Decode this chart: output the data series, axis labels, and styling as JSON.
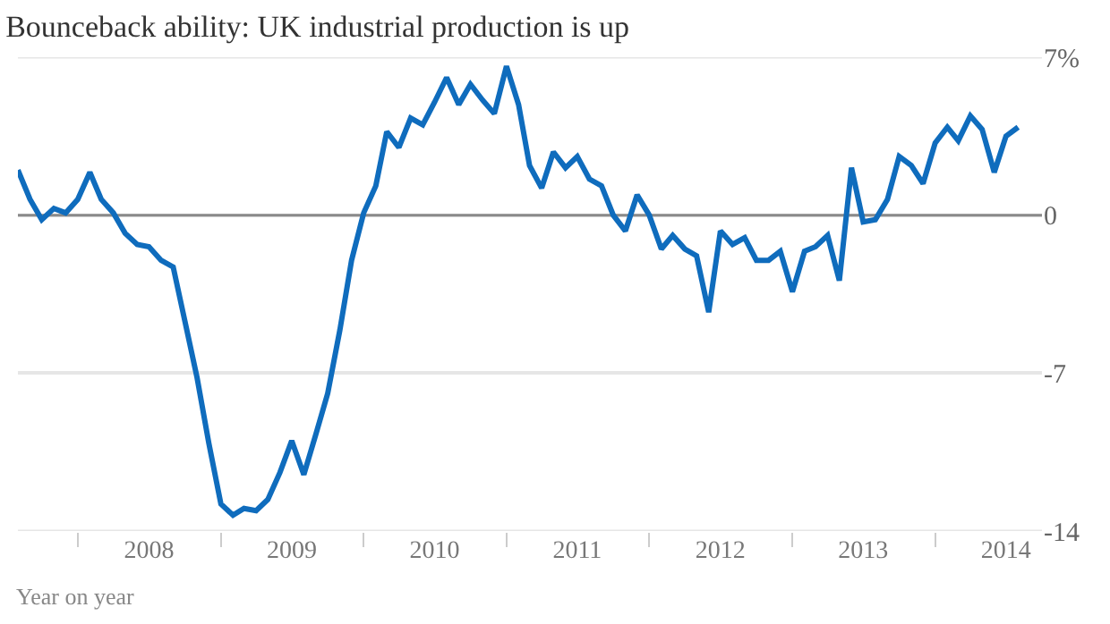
{
  "chart_data": {
    "type": "line",
    "title": "Bounceback ability: UK industrial production is up",
    "annotations": [
      "Year on year"
    ],
    "x": [
      "2007-08",
      "2007-09",
      "2007-10",
      "2007-11",
      "2007-12",
      "2008-01",
      "2008-02",
      "2008-03",
      "2008-04",
      "2008-05",
      "2008-06",
      "2008-07",
      "2008-08",
      "2008-09",
      "2008-10",
      "2008-11",
      "2008-12",
      "2009-01",
      "2009-02",
      "2009-03",
      "2009-04",
      "2009-05",
      "2009-06",
      "2009-07",
      "2009-08",
      "2009-09",
      "2009-10",
      "2009-11",
      "2009-12",
      "2010-01",
      "2010-02",
      "2010-03",
      "2010-04",
      "2010-05",
      "2010-06",
      "2010-07",
      "2010-08",
      "2010-09",
      "2010-10",
      "2010-11",
      "2010-12",
      "2011-01",
      "2011-02",
      "2011-03",
      "2011-04",
      "2011-05",
      "2011-06",
      "2011-07",
      "2011-08",
      "2011-09",
      "2011-10",
      "2011-11",
      "2011-12",
      "2012-01",
      "2012-02",
      "2012-03",
      "2012-04",
      "2012-05",
      "2012-06",
      "2012-07",
      "2012-08",
      "2012-09",
      "2012-10",
      "2012-11",
      "2012-12",
      "2013-01",
      "2013-02",
      "2013-03",
      "2013-04",
      "2013-05",
      "2013-06",
      "2013-07",
      "2013-08",
      "2013-09",
      "2013-10",
      "2013-11",
      "2013-12",
      "2014-01",
      "2014-02",
      "2014-03",
      "2014-04",
      "2014-05",
      "2014-06",
      "2014-07",
      "2014-08"
    ],
    "series": [
      {
        "color": "#0f6cbd",
        "values": [
          2.0,
          0.7,
          -0.2,
          0.3,
          0.1,
          0.7,
          1.9,
          0.7,
          0.1,
          -0.8,
          -1.3,
          -1.4,
          -2.0,
          -2.3,
          -4.7,
          -7.2,
          -10.1,
          -12.8,
          -13.3,
          -13.0,
          -13.1,
          -12.6,
          -11.4,
          -10.0,
          -11.5,
          -9.7,
          -7.9,
          -5.1,
          -2.0,
          0.1,
          1.3,
          3.7,
          3.0,
          4.3,
          4.0,
          5.0,
          6.1,
          4.9,
          5.8,
          5.1,
          4.5,
          6.6,
          4.9,
          2.2,
          1.2,
          2.8,
          2.1,
          2.6,
          1.6,
          1.3,
          0.0,
          -0.7,
          0.9,
          0.0,
          -1.5,
          -0.9,
          -1.5,
          -1.8,
          -4.3,
          -0.7,
          -1.3,
          -1.0,
          -2.0,
          -2.0,
          -1.6,
          -3.4,
          -1.6,
          -1.4,
          -0.9,
          -2.9,
          2.1,
          -0.3,
          -0.2,
          0.7,
          2.6,
          2.2,
          1.4,
          3.2,
          3.9,
          3.3,
          4.4,
          3.8,
          1.9,
          3.5,
          3.9
        ]
      }
    ],
    "xlim": [
      "2007-08",
      "2014-10"
    ],
    "xticks": [
      {
        "value": "2008-01",
        "label": null
      },
      {
        "value": "2008-07",
        "label": "2008"
      },
      {
        "value": "2009-01",
        "label": null
      },
      {
        "value": "2009-07",
        "label": "2009"
      },
      {
        "value": "2010-01",
        "label": null
      },
      {
        "value": "2010-07",
        "label": "2010"
      },
      {
        "value": "2011-01",
        "label": null
      },
      {
        "value": "2011-07",
        "label": "2011"
      },
      {
        "value": "2012-01",
        "label": null
      },
      {
        "value": "2012-07",
        "label": "2012"
      },
      {
        "value": "2013-01",
        "label": null
      },
      {
        "value": "2013-07",
        "label": "2013"
      },
      {
        "value": "2014-01",
        "label": null
      },
      {
        "value": "2014-07",
        "label": "2014"
      }
    ],
    "ylim": [
      -14,
      7
    ],
    "yticks": [
      -14,
      -7,
      0,
      {
        "value": 7,
        "label": "7%"
      }
    ],
    "ref_lines": [
      {
        "axis": "y",
        "value": 0,
        "color": "#8a8a8a"
      }
    ],
    "grid": "y",
    "marker": "none",
    "line_style": "solid"
  }
}
